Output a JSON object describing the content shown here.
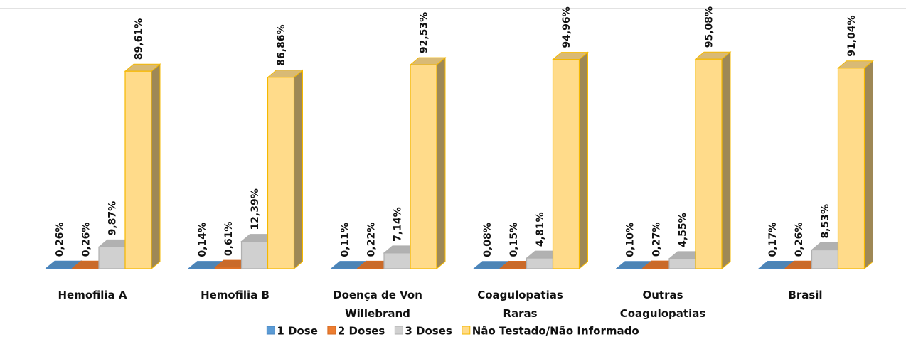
{
  "chart_data": {
    "type": "bar3d",
    "categories": [
      "Hemofilia A",
      "Hemofilia B",
      "Doença de Von Willebrand",
      "Coagulopatias Raras",
      "Outras Coagulopatias",
      "Brasil"
    ],
    "series": [
      {
        "name": "1 Dose",
        "color": "#5b9bd5",
        "values": [
          0.26,
          0.14,
          0.11,
          0.08,
          0.1,
          0.17
        ],
        "value_labels": [
          "0,26%",
          "0,14%",
          "0,11%",
          "0,08%",
          "0,10%",
          "0,17%"
        ]
      },
      {
        "name": "2 Doses",
        "color": "#ed7d31",
        "values": [
          0.26,
          0.61,
          0.22,
          0.15,
          0.27,
          0.26
        ],
        "value_labels": [
          "0,26%",
          "0,61%",
          "0,22%",
          "0,15%",
          "0,27%",
          "0,26%"
        ]
      },
      {
        "name": "3 Doses",
        "color": "#d0d0d0",
        "values": [
          9.87,
          12.39,
          7.14,
          4.81,
          4.55,
          8.53
        ],
        "value_labels": [
          "9,87%",
          "12,39%",
          "7,14%",
          "4,81%",
          "4,55%",
          "8,53%"
        ]
      },
      {
        "name": "Não Testado/Não Informado",
        "color": "#ffdb8a",
        "values": [
          89.61,
          86.86,
          92.53,
          94.96,
          95.08,
          91.04
        ],
        "value_labels": [
          "89,61%",
          "86,86%",
          "92,53%",
          "94,96%",
          "95,08%",
          "91,04%"
        ]
      }
    ],
    "legend": "bottom"
  }
}
